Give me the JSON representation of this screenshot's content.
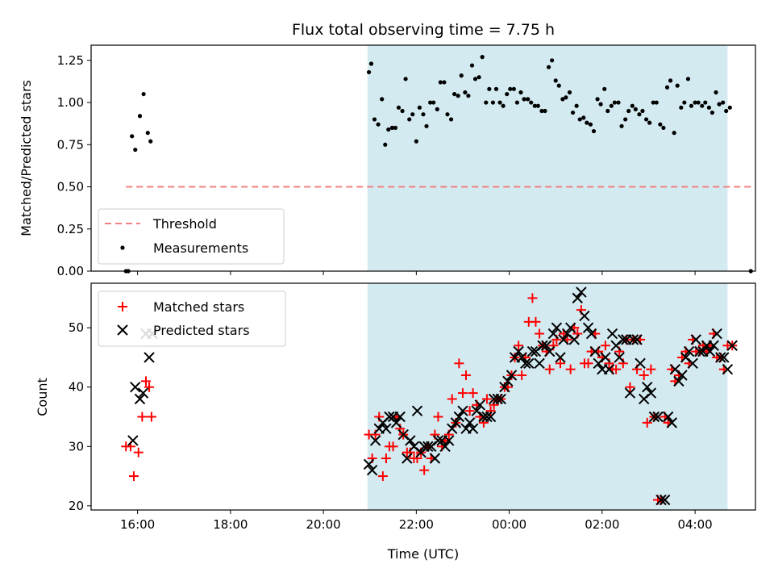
{
  "chart_data": {
    "type": "scatter",
    "title": "Flux total observing time = 7.75 h",
    "xlabel": "Time (UTC)",
    "x_units": "hours (UTC, continuing past midnight)",
    "x_range": [
      15.0,
      29.3
    ],
    "x_ticks": [
      {
        "value": 16,
        "label": "16:00"
      },
      {
        "value": 18,
        "label": "18:00"
      },
      {
        "value": 20,
        "label": "20:00"
      },
      {
        "value": 22,
        "label": "22:00"
      },
      {
        "value": 24,
        "label": "00:00"
      },
      {
        "value": 26,
        "label": "02:00"
      },
      {
        "value": 28,
        "label": "04:00"
      }
    ],
    "observing_span": [
      20.95,
      28.7
    ],
    "colors": {
      "span": "#d3eaf1",
      "threshold": "#f28080",
      "measurements": "#000000",
      "matched": "#ff0000",
      "predicted": "#000000"
    },
    "top_panel": {
      "ylabel": "Matched/Predicted stars",
      "ylim": [
        0,
        1.34
      ],
      "yticks": [
        0.0,
        0.25,
        0.5,
        0.75,
        1.0,
        1.25
      ],
      "ytick_labels": [
        "0.00",
        "0.25",
        "0.50",
        "0.75",
        "1.00",
        "1.25"
      ],
      "threshold": {
        "name": "Threshold",
        "y": 0.5,
        "x": [
          15.75,
          29.2
        ]
      },
      "legend_labels": [
        "Threshold",
        "Measurements"
      ],
      "legend_position": "lower-left",
      "measurements": {
        "name": "Measurements",
        "x": [
          15.75,
          15.8,
          15.88,
          15.95,
          16.05,
          16.13,
          16.22,
          16.28,
          20.98,
          21.03,
          21.1,
          21.18,
          21.26,
          21.33,
          21.4,
          21.48,
          21.55,
          21.62,
          21.7,
          21.77,
          21.85,
          21.92,
          22.0,
          22.07,
          22.15,
          22.22,
          22.3,
          22.37,
          22.45,
          22.52,
          22.6,
          22.67,
          22.75,
          22.82,
          22.9,
          22.97,
          23.05,
          23.12,
          23.2,
          23.27,
          23.35,
          23.42,
          23.5,
          23.57,
          23.65,
          23.72,
          23.8,
          23.87,
          23.95,
          24.02,
          24.1,
          24.17,
          24.25,
          24.32,
          24.4,
          24.47,
          24.55,
          24.62,
          24.7,
          24.77,
          24.85,
          24.92,
          25.0,
          25.07,
          25.15,
          25.22,
          25.3,
          25.37,
          25.45,
          25.52,
          25.6,
          25.67,
          25.75,
          25.82,
          25.9,
          25.97,
          26.05,
          26.12,
          26.2,
          26.27,
          26.35,
          26.42,
          26.5,
          26.57,
          26.65,
          26.72,
          26.8,
          26.87,
          26.95,
          27.02,
          27.1,
          27.17,
          27.25,
          27.32,
          27.4,
          27.47,
          27.55,
          27.62,
          27.7,
          27.77,
          27.85,
          27.92,
          28.0,
          28.07,
          28.15,
          28.22,
          28.3,
          28.37,
          28.45,
          28.52,
          28.6,
          28.67,
          28.75,
          29.2
        ],
        "y": [
          0.0,
          0.0,
          0.8,
          0.72,
          0.92,
          1.05,
          0.82,
          0.77,
          1.18,
          1.23,
          0.9,
          0.87,
          1.02,
          0.75,
          0.84,
          0.85,
          0.85,
          0.97,
          0.95,
          1.14,
          0.9,
          0.93,
          0.77,
          0.97,
          0.93,
          0.86,
          1.0,
          1.0,
          0.96,
          1.12,
          1.12,
          0.93,
          0.9,
          1.05,
          1.04,
          1.16,
          1.06,
          1.04,
          1.22,
          1.14,
          1.15,
          1.27,
          1.0,
          1.08,
          1.0,
          1.08,
          1.0,
          0.98,
          1.05,
          1.08,
          1.08,
          1.0,
          1.06,
          1.02,
          1.02,
          1.0,
          0.98,
          0.98,
          0.95,
          0.95,
          1.21,
          1.25,
          1.13,
          1.1,
          1.02,
          1.03,
          1.06,
          0.94,
          0.98,
          0.9,
          0.91,
          0.88,
          0.87,
          0.83,
          1.02,
          0.99,
          1.08,
          0.95,
          0.98,
          1.0,
          1.0,
          0.86,
          0.9,
          0.95,
          0.98,
          0.96,
          0.93,
          0.95,
          0.9,
          0.88,
          1.0,
          1.0,
          0.87,
          0.85,
          1.09,
          1.13,
          0.82,
          1.1,
          0.97,
          1.0,
          1.14,
          0.98,
          1.0,
          1.0,
          0.98,
          1.0,
          0.97,
          0.94,
          1.06,
          0.99,
          1.0,
          0.95,
          0.97,
          0.0
        ]
      }
    },
    "bottom_panel": {
      "ylabel": "Count",
      "ylim": [
        19.3,
        57.5
      ],
      "yticks": [
        20,
        30,
        40,
        50
      ],
      "ytick_labels": [
        "20",
        "30",
        "40",
        "50"
      ],
      "legend_labels": [
        "Matched stars",
        "Predicted stars"
      ],
      "legend_position": "upper-left",
      "matched": {
        "name": "Matched stars",
        "x": [
          15.75,
          15.85,
          15.92,
          16.02,
          16.1,
          16.18,
          16.25,
          16.3,
          20.98,
          21.05,
          21.12,
          21.2,
          21.28,
          21.35,
          21.42,
          21.5,
          21.57,
          21.65,
          21.72,
          21.8,
          21.87,
          21.95,
          22.02,
          22.1,
          22.17,
          22.25,
          22.32,
          22.4,
          22.47,
          22.55,
          22.62,
          22.7,
          22.77,
          22.85,
          22.92,
          23.0,
          23.07,
          23.15,
          23.22,
          23.3,
          23.37,
          23.45,
          23.52,
          23.6,
          23.67,
          23.75,
          23.82,
          23.9,
          23.97,
          24.05,
          24.12,
          24.2,
          24.27,
          24.35,
          24.42,
          24.5,
          24.57,
          24.65,
          24.72,
          24.8,
          24.87,
          24.95,
          25.02,
          25.1,
          25.17,
          25.25,
          25.32,
          25.4,
          25.47,
          25.55,
          25.62,
          25.7,
          25.77,
          25.85,
          25.92,
          26.0,
          26.07,
          26.15,
          26.22,
          26.3,
          26.37,
          26.45,
          26.52,
          26.6,
          26.67,
          26.75,
          26.82,
          26.9,
          26.97,
          27.05,
          27.12,
          27.2,
          27.27,
          27.35,
          27.42,
          27.5,
          27.57,
          27.65,
          27.72,
          27.8,
          27.87,
          27.95,
          28.02,
          28.1,
          28.17,
          28.25,
          28.32,
          28.4,
          28.47,
          28.55,
          28.62,
          28.7,
          28.8
        ],
        "y": [
          30,
          30,
          25,
          29,
          35,
          41,
          40,
          35,
          32,
          28,
          32,
          35,
          25,
          28,
          30,
          30,
          35,
          33,
          32,
          29,
          29,
          28,
          28,
          29,
          26,
          30,
          28,
          32,
          35,
          30,
          31,
          32,
          38,
          34,
          44,
          39,
          42,
          36,
          39,
          37,
          35,
          34,
          38,
          36,
          37,
          38,
          38,
          40,
          40,
          42,
          45,
          47,
          42,
          45,
          51,
          55,
          51,
          49,
          47,
          46,
          43,
          47,
          48,
          44,
          49,
          48,
          43,
          50,
          49,
          53,
          44,
          44,
          46,
          49,
          46,
          45,
          47,
          44,
          43,
          43,
          46,
          44,
          48,
          40,
          48,
          43,
          48,
          42,
          34,
          43,
          35,
          21,
          21,
          35,
          34,
          43,
          41,
          42,
          45,
          46,
          44,
          48,
          46,
          46,
          47,
          46,
          47,
          49,
          45,
          45,
          43,
          47,
          47
        ],
        "_note_": "values estimated from gridlines"
      },
      "predicted": {
        "name": "Predicted stars",
        "x": [
          15.9,
          15.95,
          16.05,
          16.12,
          16.18,
          16.25,
          16.32,
          20.98,
          21.05,
          21.12,
          21.2,
          21.28,
          21.35,
          21.42,
          21.5,
          21.57,
          21.65,
          21.72,
          21.8,
          21.87,
          21.95,
          22.02,
          22.1,
          22.17,
          22.25,
          22.32,
          22.4,
          22.47,
          22.55,
          22.62,
          22.7,
          22.77,
          22.85,
          22.92,
          23.0,
          23.07,
          23.15,
          23.22,
          23.3,
          23.37,
          23.45,
          23.52,
          23.6,
          23.67,
          23.75,
          23.82,
          23.9,
          23.97,
          24.05,
          24.12,
          24.2,
          24.27,
          24.35,
          24.42,
          24.5,
          24.57,
          24.65,
          24.72,
          24.8,
          24.87,
          24.95,
          25.02,
          25.1,
          25.17,
          25.25,
          25.32,
          25.4,
          25.47,
          25.55,
          25.62,
          25.7,
          25.77,
          25.85,
          25.92,
          26.0,
          26.07,
          26.15,
          26.22,
          26.3,
          26.37,
          26.45,
          26.52,
          26.6,
          26.67,
          26.75,
          26.82,
          26.9,
          26.97,
          27.05,
          27.12,
          27.2,
          27.27,
          27.35,
          27.42,
          27.5,
          27.57,
          27.65,
          27.72,
          27.8,
          27.87,
          27.95,
          28.02,
          28.1,
          28.17,
          28.25,
          28.32,
          28.4,
          28.47,
          28.55,
          28.62,
          28.7,
          28.8
        ],
        "y": [
          31,
          40,
          38,
          39,
          49,
          45,
          49,
          27,
          26,
          31,
          33,
          34,
          33,
          35,
          35,
          34,
          35,
          32,
          28,
          31,
          30,
          36,
          29,
          30,
          30,
          30,
          28,
          31,
          31,
          30,
          31,
          33,
          34,
          35,
          36,
          33,
          34,
          33,
          36,
          37,
          35,
          35,
          35,
          38,
          38,
          38,
          40,
          41,
          42,
          45,
          46,
          45,
          44,
          44,
          46,
          46,
          44,
          47,
          47,
          46,
          49,
          50,
          45,
          48,
          49,
          50,
          48,
          55,
          56,
          52,
          50,
          49,
          46,
          44,
          43,
          45,
          43,
          49,
          47,
          45,
          48,
          48,
          39,
          48,
          48,
          44,
          38,
          40,
          39,
          35,
          35,
          21,
          21,
          35,
          34,
          43,
          41,
          42,
          45,
          46,
          44,
          48,
          46,
          46,
          47,
          46,
          47,
          49,
          45,
          45,
          43,
          47
        ]
      }
    }
  }
}
